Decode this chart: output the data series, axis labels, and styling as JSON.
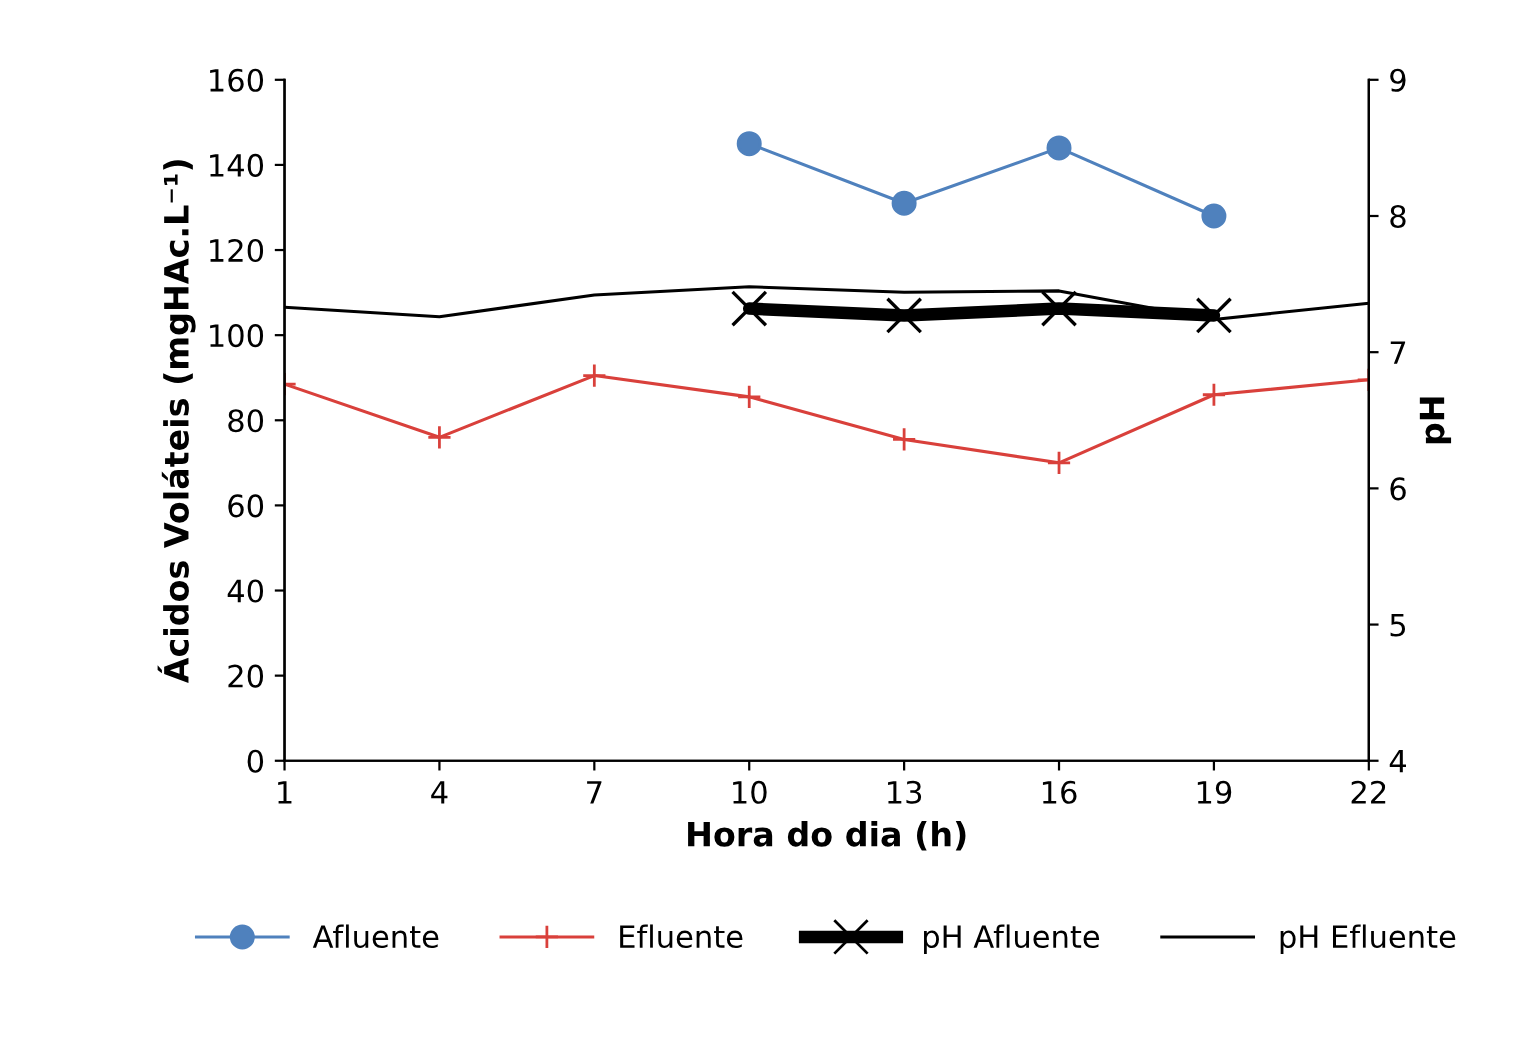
{
  "chart_data": {
    "type": "line",
    "xlabel": "Hora do dia (h)",
    "ylabel": "Ácidos Voláteis (mgHAc.L⁻¹)",
    "y2label": "pH",
    "xlim": [
      1,
      22
    ],
    "xticks": [
      1,
      4,
      7,
      10,
      13,
      16,
      19,
      22
    ],
    "ylim": [
      0,
      160
    ],
    "yticks": [
      0,
      20,
      40,
      60,
      80,
      100,
      120,
      140,
      160
    ],
    "y2lim": [
      4,
      9
    ],
    "y2ticks": [
      4,
      5,
      6,
      7,
      8,
      9
    ],
    "grid": false,
    "legend": "bottom",
    "series": [
      {
        "name": "Afluente",
        "color": "#4f81bd",
        "marker": "circle",
        "x": [
          10,
          13,
          16,
          19
        ],
        "values": [
          145,
          131,
          144,
          128
        ]
      },
      {
        "name": "Efluente",
        "color": "#d9403b",
        "marker": "plus",
        "x": [
          1,
          4,
          7,
          10,
          13,
          16,
          19,
          22
        ],
        "values": [
          88.5,
          76,
          90.5,
          85.5,
          75.5,
          70,
          86,
          89.5
        ]
      },
      {
        "name": "pH Afluente",
        "color": "#000000",
        "marker": "cross",
        "axis": "y2",
        "x": [
          10,
          13,
          16,
          19
        ],
        "values": [
          7.32,
          7.27,
          7.32,
          7.27
        ]
      },
      {
        "name": "pH Efluente",
        "color": "#000000",
        "marker": "none",
        "axis": "y2",
        "x": [
          1,
          4,
          7,
          10,
          13,
          16,
          19,
          22
        ],
        "values": [
          7.33,
          7.26,
          7.42,
          7.48,
          7.44,
          7.45,
          7.24,
          7.36
        ]
      }
    ]
  }
}
